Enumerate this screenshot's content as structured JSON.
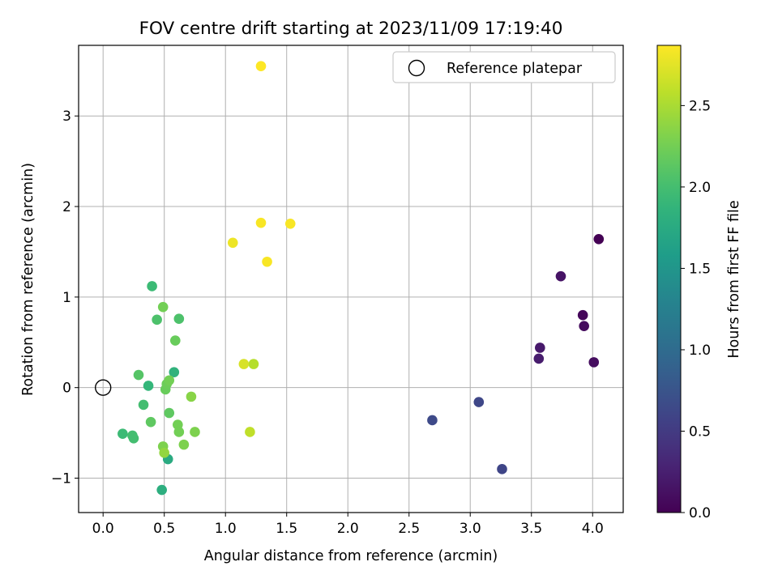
{
  "chart_data": {
    "type": "scatter",
    "title": "FOV centre drift starting at 2023/11/09 17:19:40",
    "xlabel": "Angular distance from reference (arcmin)",
    "ylabel": "Rotation from reference (arcmin)",
    "xlim": [
      -0.2,
      4.25
    ],
    "ylim": [
      -1.38,
      3.78
    ],
    "x_ticks": [
      0.0,
      0.5,
      1.0,
      1.5,
      2.0,
      2.5,
      3.0,
      3.5,
      4.0
    ],
    "x_tick_labels": [
      "0.0",
      "0.5",
      "1.0",
      "1.5",
      "2.0",
      "2.5",
      "3.0",
      "3.5",
      "4.0"
    ],
    "y_ticks": [
      -1,
      0,
      1,
      2,
      3
    ],
    "y_tick_labels": [
      "−1",
      "0",
      "1",
      "2",
      "3"
    ],
    "grid": true,
    "colormap": "viridis",
    "colorbar": {
      "label": "Hours from first FF file",
      "range": [
        0.0,
        2.87
      ],
      "ticks": [
        0.0,
        0.5,
        1.0,
        1.5,
        2.0,
        2.5
      ],
      "tick_labels": [
        "0.0",
        "0.5",
        "1.0",
        "1.5",
        "2.0",
        "2.5"
      ]
    },
    "reference": {
      "x": 0,
      "y": 0,
      "marker": "open-circle",
      "label": "Reference platepar"
    },
    "legend": {
      "position": "top-right",
      "entries": [
        "Reference platepar"
      ]
    },
    "points": [
      {
        "x": 4.05,
        "y": 1.64,
        "hours": 0.0
      },
      {
        "x": 3.92,
        "y": 0.8,
        "hours": 0.05
      },
      {
        "x": 3.93,
        "y": 0.68,
        "hours": 0.08
      },
      {
        "x": 4.01,
        "y": 0.28,
        "hours": 0.1
      },
      {
        "x": 3.74,
        "y": 1.23,
        "hours": 0.15
      },
      {
        "x": 3.57,
        "y": 0.44,
        "hours": 0.2
      },
      {
        "x": 3.56,
        "y": 0.32,
        "hours": 0.22
      },
      {
        "x": 3.26,
        "y": -0.9,
        "hours": 0.6
      },
      {
        "x": 3.07,
        "y": -0.16,
        "hours": 0.62
      },
      {
        "x": 2.69,
        "y": -0.36,
        "hours": 0.65
      },
      {
        "x": 0.48,
        "y": -1.13,
        "hours": 1.8
      },
      {
        "x": 0.53,
        "y": -0.79,
        "hours": 1.75
      },
      {
        "x": 0.58,
        "y": 0.17,
        "hours": 1.85
      },
      {
        "x": 0.37,
        "y": 0.02,
        "hours": 1.9
      },
      {
        "x": 0.4,
        "y": 1.12,
        "hours": 1.95
      },
      {
        "x": 0.16,
        "y": -0.51,
        "hours": 1.95
      },
      {
        "x": 0.24,
        "y": -0.53,
        "hours": 2.0
      },
      {
        "x": 0.25,
        "y": -0.56,
        "hours": 2.0
      },
      {
        "x": 0.33,
        "y": -0.19,
        "hours": 2.0
      },
      {
        "x": 0.44,
        "y": 0.75,
        "hours": 2.05
      },
      {
        "x": 0.62,
        "y": 0.76,
        "hours": 2.05
      },
      {
        "x": 0.29,
        "y": 0.14,
        "hours": 2.1
      },
      {
        "x": 0.39,
        "y": -0.38,
        "hours": 2.15
      },
      {
        "x": 0.54,
        "y": -0.28,
        "hours": 2.15
      },
      {
        "x": 0.59,
        "y": 0.52,
        "hours": 2.2
      },
      {
        "x": 0.51,
        "y": -0.02,
        "hours": 2.2
      },
      {
        "x": 0.52,
        "y": 0.04,
        "hours": 2.22
      },
      {
        "x": 0.54,
        "y": 0.08,
        "hours": 2.25
      },
      {
        "x": 0.49,
        "y": 0.89,
        "hours": 2.25
      },
      {
        "x": 0.61,
        "y": -0.41,
        "hours": 2.25
      },
      {
        "x": 0.62,
        "y": -0.49,
        "hours": 2.25
      },
      {
        "x": 0.49,
        "y": -0.65,
        "hours": 2.3
      },
      {
        "x": 0.66,
        "y": -0.63,
        "hours": 2.3
      },
      {
        "x": 0.75,
        "y": -0.49,
        "hours": 2.3
      },
      {
        "x": 0.72,
        "y": -0.1,
        "hours": 2.35
      },
      {
        "x": 0.5,
        "y": -0.72,
        "hours": 2.4
      },
      {
        "x": 1.23,
        "y": 0.26,
        "hours": 2.55
      },
      {
        "x": 1.2,
        "y": -0.49,
        "hours": 2.6
      },
      {
        "x": 1.15,
        "y": 0.26,
        "hours": 2.7
      },
      {
        "x": 1.06,
        "y": 1.6,
        "hours": 2.8
      },
      {
        "x": 1.29,
        "y": 1.82,
        "hours": 2.85
      },
      {
        "x": 1.34,
        "y": 1.39,
        "hours": 2.85
      },
      {
        "x": 1.53,
        "y": 1.81,
        "hours": 2.85
      },
      {
        "x": 1.29,
        "y": 3.55,
        "hours": 2.87
      }
    ]
  }
}
